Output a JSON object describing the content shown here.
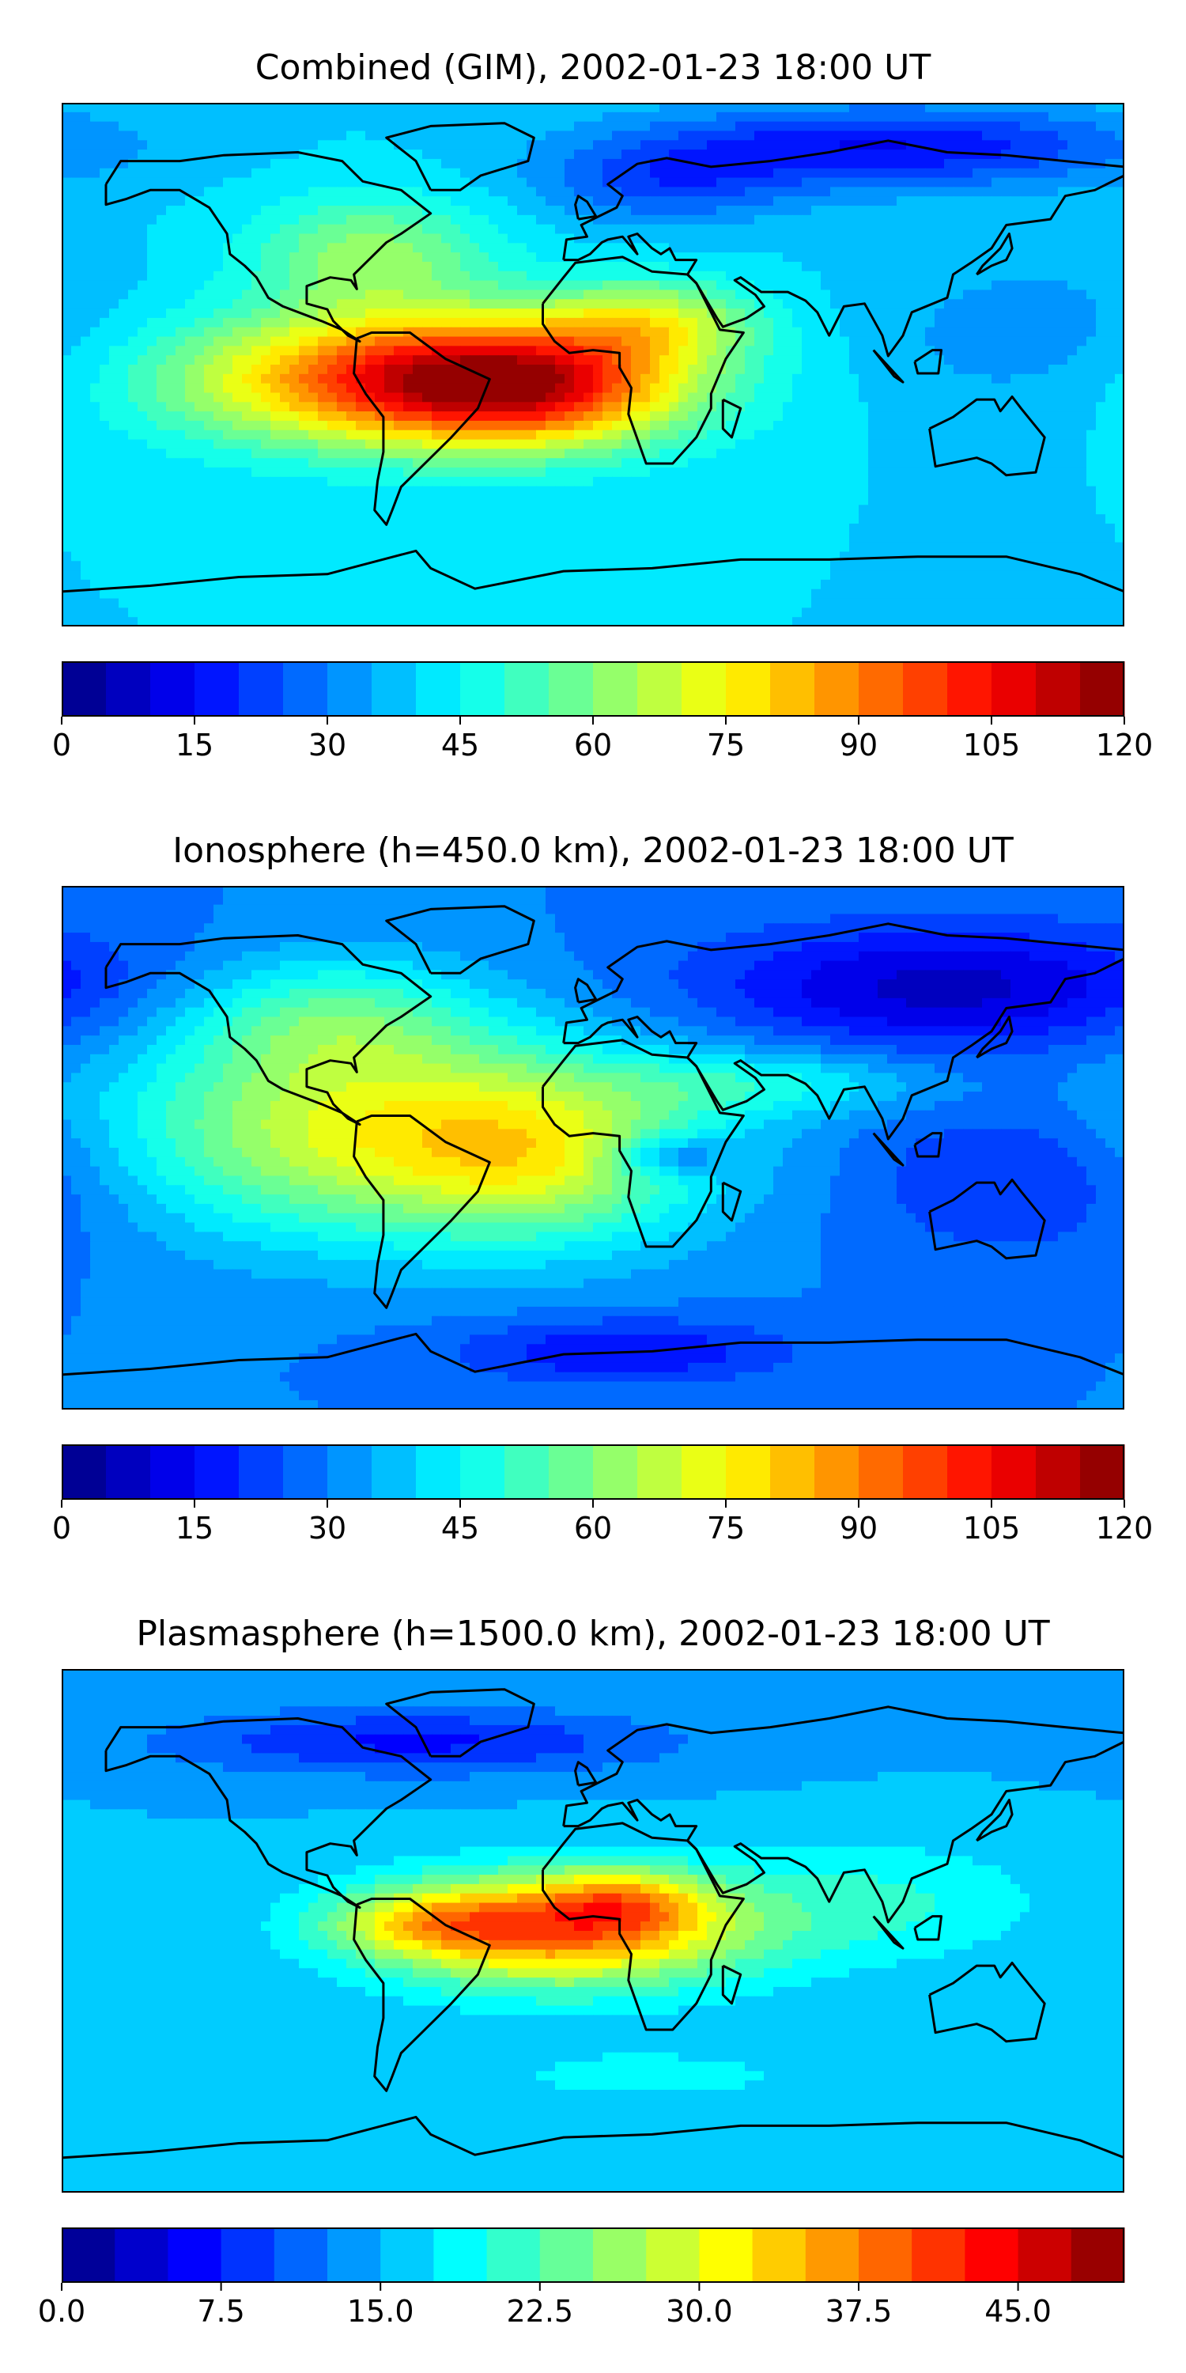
{
  "panels": [
    {
      "title": "Combined (GIM), 2002-01-23 18:00 UT",
      "colorbar": {
        "vmin": 0,
        "vmax": 120,
        "levels": 24,
        "ticks": [
          0,
          15,
          30,
          45,
          60,
          75,
          90,
          105,
          120
        ],
        "tick_labels": [
          "0",
          "15",
          "30",
          "45",
          "60",
          "75",
          "90",
          "105",
          "120"
        ]
      },
      "field": {
        "base": 40,
        "blobs": [
          {
            "lon": -60,
            "lat": -5,
            "amp": 60,
            "slon": 55,
            "slat": 16
          },
          {
            "lon": -20,
            "lat": -8,
            "amp": 35,
            "slon": 35,
            "slat": 14
          },
          {
            "lon": 20,
            "lat": 15,
            "amp": 25,
            "slon": 25,
            "slat": 10
          },
          {
            "lon": -75,
            "lat": 38,
            "amp": 22,
            "slon": 28,
            "slat": 14
          },
          {
            "lon": 100,
            "lat": 75,
            "amp": -25,
            "slon": 60,
            "slat": 10
          },
          {
            "lon": 25,
            "lat": 62,
            "amp": -15,
            "slon": 30,
            "slat": 10
          },
          {
            "lon": 150,
            "lat": 10,
            "amp": -8,
            "slon": 40,
            "slat": 20
          }
        ]
      }
    },
    {
      "title": "Ionosphere  (h=450.0 km), 2002-01-23 18:00 UT",
      "colorbar": {
        "vmin": 0,
        "vmax": 120,
        "levels": 24,
        "ticks": [
          0,
          15,
          30,
          45,
          60,
          75,
          90,
          105,
          120
        ],
        "tick_labels": [
          "0",
          "15",
          "30",
          "45",
          "60",
          "75",
          "90",
          "105",
          "120"
        ]
      },
      "field": {
        "base": 30,
        "blobs": [
          {
            "lon": -70,
            "lat": 5,
            "amp": 42,
            "slon": 65,
            "slat": 25
          },
          {
            "lon": -90,
            "lat": 45,
            "amp": 20,
            "slon": 35,
            "slat": 15
          },
          {
            "lon": -15,
            "lat": -5,
            "amp": 20,
            "slon": 35,
            "slat": 20
          },
          {
            "lon": 60,
            "lat": 22,
            "amp": 15,
            "slon": 40,
            "slat": 8
          },
          {
            "lon": 25,
            "lat": -3,
            "amp": -18,
            "slon": 14,
            "slat": 5
          },
          {
            "lon": 120,
            "lat": 55,
            "amp": -22,
            "slon": 60,
            "slat": 15
          },
          {
            "lon": 150,
            "lat": -10,
            "amp": -12,
            "slon": 40,
            "slat": 20
          },
          {
            "lon": 10,
            "lat": -70,
            "amp": -15,
            "slon": 40,
            "slat": 8
          }
        ]
      }
    },
    {
      "title": "Plasmasphere (h=1500.0 km), 2002-01-23 18:00 UT",
      "colorbar": {
        "vmin": 0,
        "vmax": 50,
        "levels": 20,
        "ticks": [
          0,
          7.5,
          15,
          22.5,
          30,
          37.5,
          45
        ],
        "tick_labels": [
          "0.0",
          "7.5",
          "15.0",
          "22.5",
          "30.0",
          "37.5",
          "45.0"
        ]
      },
      "field": {
        "base": 15,
        "blobs": [
          {
            "lon": -10,
            "lat": 0,
            "amp": 22,
            "slon": 45,
            "slat": 14
          },
          {
            "lon": -55,
            "lat": 3,
            "amp": 10,
            "slon": 25,
            "slat": 8
          },
          {
            "lon": 10,
            "lat": 10,
            "amp": 10,
            "slon": 20,
            "slat": 8
          },
          {
            "lon": 100,
            "lat": 10,
            "amp": 5,
            "slon": 40,
            "slat": 15
          },
          {
            "lon": -60,
            "lat": 65,
            "amp": -8,
            "slon": 60,
            "slat": 8
          },
          {
            "lon": 20,
            "lat": -50,
            "amp": 3,
            "slon": 60,
            "slat": 10
          }
        ]
      }
    }
  ],
  "map_style": {
    "coastline_color": "#000000",
    "colormap": "jet"
  }
}
